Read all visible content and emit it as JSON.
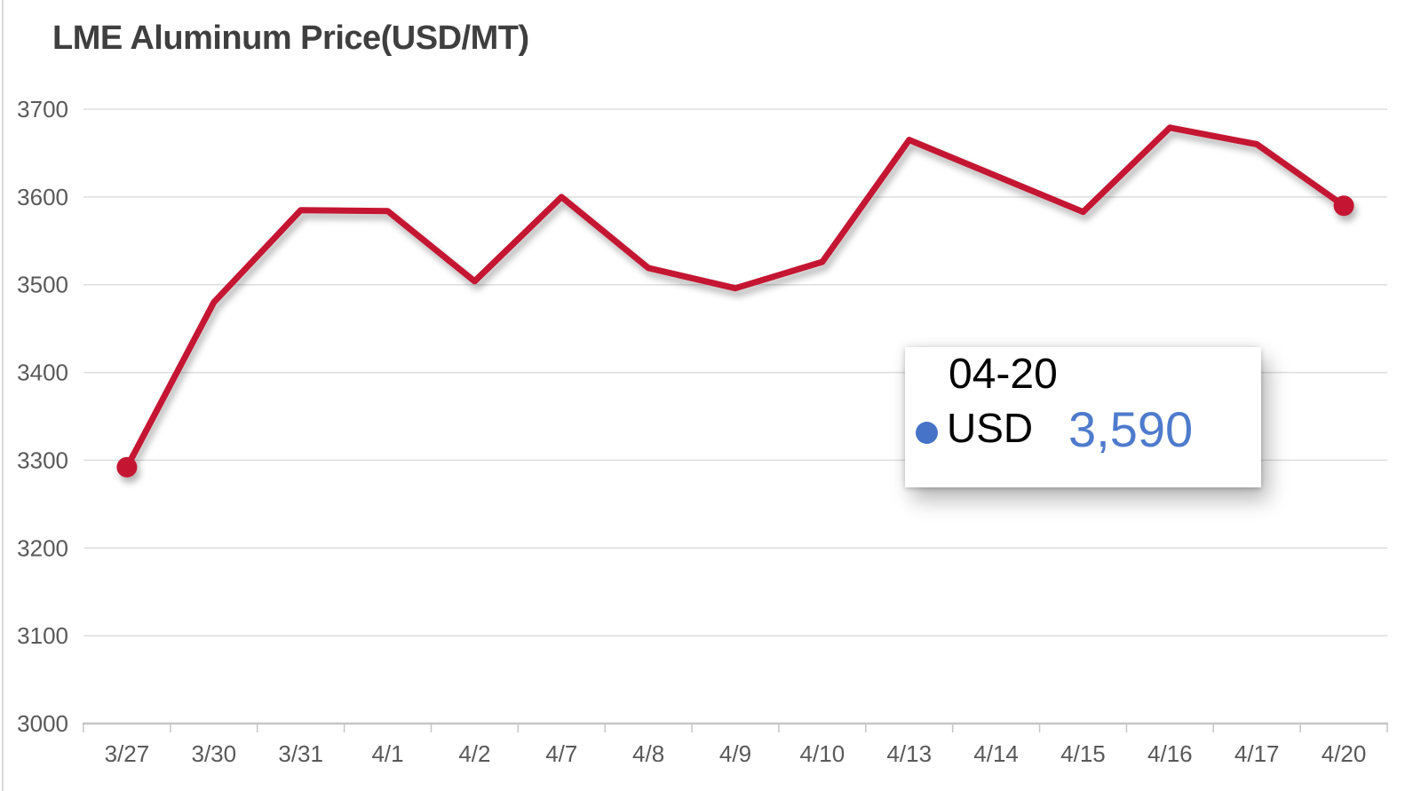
{
  "title": "LME Aluminum Price(USD/MT)",
  "colors": {
    "line": "#C41230",
    "marker": "#C41230",
    "grid": "#DEDEDE",
    "axis_line": "#C6C6C6",
    "axis_text": "#595959",
    "title_text": "#3F3F3F",
    "tooltip_accent": "#4673C8",
    "tooltip_value_text": "#4E7BCC",
    "tooltip_label_text": "#000000"
  },
  "chart_data": {
    "type": "line",
    "title": "LME Aluminum Price(USD/MT)",
    "categories": [
      "3/27",
      "3/30",
      "3/31",
      "4/1",
      "4/2",
      "4/7",
      "4/8",
      "4/9",
      "4/10",
      "4/13",
      "4/14",
      "4/15",
      "4/16",
      "4/17",
      "4/20"
    ],
    "series": [
      {
        "name": "USD",
        "values": [
          3292,
          3480,
          3585,
          3584,
          3504,
          3600,
          3519,
          3496,
          3526,
          3665,
          3624,
          3583,
          3679,
          3660,
          3590
        ]
      }
    ],
    "xlabel": "",
    "ylabel": "",
    "ylim": [
      3000,
      3700
    ],
    "ytick_step": 100,
    "yticks": [
      3000,
      3100,
      3200,
      3300,
      3400,
      3500,
      3600,
      3700
    ],
    "grid": "horizontal",
    "legend": "none",
    "markers_on": [
      "first",
      "last"
    ]
  },
  "tooltip": {
    "date": "04-20",
    "series_label": "USD",
    "value": "3,590"
  }
}
